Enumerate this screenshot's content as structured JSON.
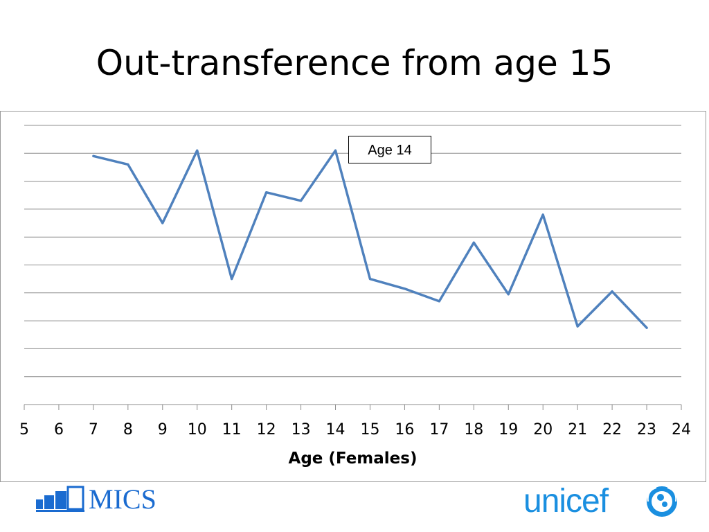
{
  "slide": {
    "title": "Out-transference from age 15"
  },
  "annotation": {
    "label": "Age 14"
  },
  "logos": {
    "left_text": "MICS",
    "right_text": "unicef"
  },
  "colors": {
    "line": "#4f81bd",
    "grid": "#8c8c8c",
    "mics_blue": "#1a6bd0",
    "unicef_blue": "#1a8fe0"
  },
  "chart_data": {
    "type": "line",
    "title": "",
    "xlabel": "Age (Females)",
    "ylabel": "",
    "xlim": [
      5,
      24
    ],
    "xticks": [
      5,
      6,
      7,
      8,
      9,
      10,
      11,
      12,
      13,
      14,
      15,
      16,
      17,
      18,
      19,
      20,
      21,
      22,
      23,
      24
    ],
    "ylim": [
      0,
      10
    ],
    "grid": true,
    "y_tick_labels_shown": false,
    "series": [
      {
        "name": "",
        "x": [
          7,
          8,
          9,
          10,
          11,
          12,
          13,
          14,
          15,
          16,
          17,
          18,
          19,
          20,
          21,
          22,
          23
        ],
        "y": [
          8.9,
          8.6,
          6.5,
          9.1,
          4.5,
          7.6,
          7.3,
          9.1,
          4.5,
          4.15,
          3.7,
          5.8,
          3.95,
          6.8,
          2.8,
          4.05,
          2.75
        ]
      }
    ]
  }
}
